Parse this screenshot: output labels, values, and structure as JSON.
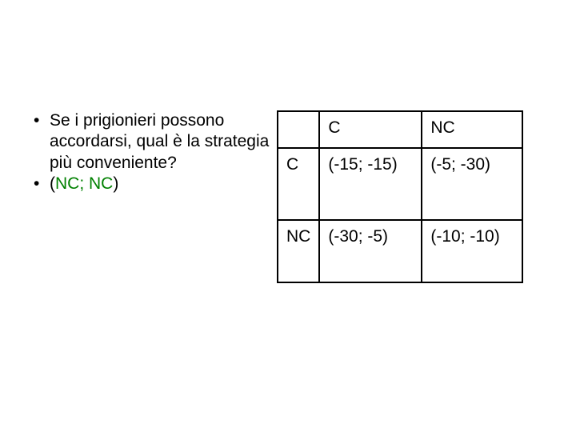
{
  "bullets": {
    "item1": "Se i prigionieri possono accordarsi, qual è la strategia più conveniente?",
    "item2_open": "(",
    "item2_answer": "NC; NC",
    "item2_close": ")"
  },
  "table": {
    "header_col1": "C",
    "header_col2": "NC",
    "row_c_label": "C",
    "row_c_col1": "(-15; -15)",
    "row_c_col2": "(-5; -30)",
    "row_nc_label": "NC",
    "row_nc_col1": "(-30; -5)",
    "row_nc_col2": "(-10; -10)"
  },
  "colors": {
    "text": "#000000",
    "answer_highlight": "#008000",
    "border": "#000000",
    "background": "#ffffff"
  },
  "typography": {
    "font_family": "Arial",
    "font_size_pt": 16
  }
}
